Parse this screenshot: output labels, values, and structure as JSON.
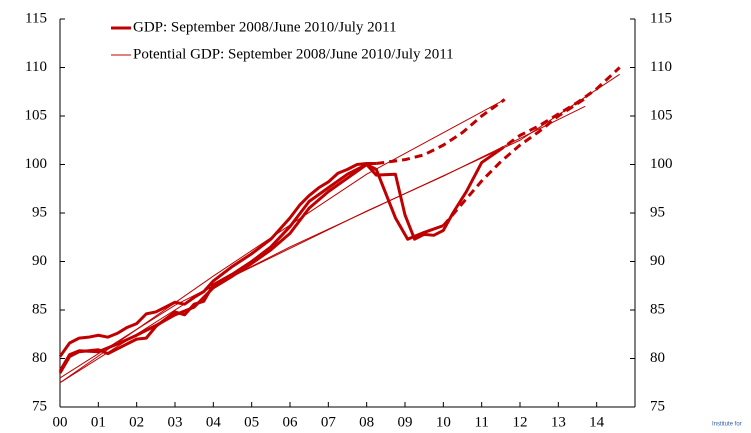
{
  "chart_data": {
    "type": "line",
    "xlim": [
      0,
      15
    ],
    "ylim": [
      75,
      115
    ],
    "y2lim": [
      75,
      115
    ],
    "xticks": [
      {
        "value": 0,
        "label": "00"
      },
      {
        "value": 1,
        "label": "01"
      },
      {
        "value": 2,
        "label": "02"
      },
      {
        "value": 3,
        "label": "03"
      },
      {
        "value": 4,
        "label": "04"
      },
      {
        "value": 5,
        "label": "05"
      },
      {
        "value": 6,
        "label": "06"
      },
      {
        "value": 7,
        "label": "07"
      },
      {
        "value": 8,
        "label": "08"
      },
      {
        "value": 9,
        "label": "09"
      },
      10,
      11,
      12,
      13,
      14
    ],
    "yticks": [
      75,
      80,
      85,
      90,
      95,
      100,
      105,
      110,
      115
    ],
    "y2ticks": [
      75,
      80,
      85,
      90,
      95,
      100,
      105,
      110,
      115
    ],
    "legend": "top-left",
    "series": [
      {
        "name": "GDP: September 2008/June 2010/July 2011",
        "color": "#c00000",
        "width": 3,
        "dashed": false,
        "x": [
          0,
          0.25,
          0.5,
          0.75,
          1,
          1.25,
          1.5,
          1.75,
          2,
          2.25,
          2.5,
          2.75,
          3,
          3.25,
          3.5,
          3.75,
          4,
          4.5,
          5,
          5.5,
          6,
          6.25,
          6.5,
          6.75,
          7,
          7.25,
          7.5,
          7.75,
          8,
          8.25
        ],
        "values": [
          80.2,
          81.6,
          82.1,
          82.2,
          82.4,
          82.2,
          82.6,
          83.2,
          83.6,
          84.6,
          84.8,
          85.3,
          85.8,
          85.6,
          86.3,
          86.9,
          88.0,
          89.5,
          90.8,
          92.3,
          94.5,
          95.8,
          96.8,
          97.6,
          98.2,
          99.1,
          99.5,
          100,
          100.1,
          100.1
        ]
      },
      {
        "color": "#c00000",
        "width": 3,
        "dashed": true,
        "x": [
          8.25,
          9,
          9.5,
          10,
          10.5,
          11,
          11.6
        ],
        "values": [
          100.1,
          100.5,
          101,
          102,
          103.3,
          105,
          106.7
        ]
      },
      {
        "color": "#c00000",
        "width": 3,
        "dashed": false,
        "x": [
          0,
          0.25,
          0.5,
          1,
          1.25,
          1.5,
          2,
          2.25,
          2.5,
          3,
          3.25,
          3.5,
          3.75,
          4,
          4.5,
          5,
          5.5,
          6,
          6.5,
          7,
          7.5,
          8,
          8.25,
          8.5,
          8.75,
          9.07,
          9.5,
          10
        ],
        "values": [
          78.5,
          80.2,
          80.7,
          80.9,
          80.5,
          81,
          82,
          82.1,
          83.3,
          84.8,
          84.5,
          85.6,
          85.9,
          87.6,
          88.7,
          90,
          91.5,
          93.6,
          96.2,
          97.6,
          99,
          100,
          99.5,
          97,
          94.5,
          92.3,
          93,
          93.7
        ]
      },
      {
        "color": "#c00000",
        "width": 3,
        "dashed": true,
        "x": [
          10,
          10.5,
          11,
          11.5,
          12,
          12.5,
          13,
          13.7
        ],
        "values": [
          93.7,
          96,
          98.3,
          100.3,
          102,
          103.4,
          105,
          106.8
        ]
      },
      {
        "color": "#c00000",
        "width": 3,
        "dashed": false,
        "x": [
          0,
          0.25,
          0.5,
          1,
          1.5,
          2,
          2.5,
          3,
          3.5,
          4,
          4.5,
          5,
          5.5,
          6,
          6.5,
          7,
          7.5,
          8,
          8.25,
          8.75,
          9,
          9.25,
          9.5,
          9.75,
          10,
          10.25,
          10.6,
          11,
          11.4
        ],
        "values": [
          78.7,
          80.4,
          80.8,
          80.7,
          81.5,
          82.4,
          83.4,
          84.5,
          85.3,
          87.3,
          88.5,
          89.8,
          91.2,
          92.9,
          95.5,
          97.2,
          98.6,
          100,
          98.9,
          99,
          94.8,
          92.3,
          92.8,
          92.7,
          93.2,
          95,
          97.2,
          100.2,
          101.3
        ]
      },
      {
        "color": "#c00000",
        "width": 3,
        "dashed": true,
        "x": [
          11.4,
          12,
          12.5,
          13,
          13.5,
          14,
          14.6
        ],
        "values": [
          101.3,
          103,
          104,
          105.2,
          106.4,
          107.8,
          110
        ]
      },
      {
        "name": "Potential GDP: September 2008/June 2010/July 2011",
        "color": "#c00000",
        "width": 1,
        "dashed": false,
        "x": [
          0,
          4,
          8,
          11.6
        ],
        "values": [
          77.5,
          88.5,
          99,
          106.7
        ]
      },
      {
        "color": "#c00000",
        "width": 1,
        "dashed": false,
        "x": [
          0,
          4,
          8,
          10,
          13.7
        ],
        "values": [
          77.5,
          87.5,
          95.2,
          98.8,
          106
        ]
      },
      {
        "color": "#c00000",
        "width": 1,
        "dashed": false,
        "x": [
          0,
          3,
          6,
          9,
          12,
          14.6
        ],
        "values": [
          78,
          85.5,
          91.5,
          97,
          102.5,
          109.3
        ]
      }
    ]
  },
  "watermark": "Institute for"
}
